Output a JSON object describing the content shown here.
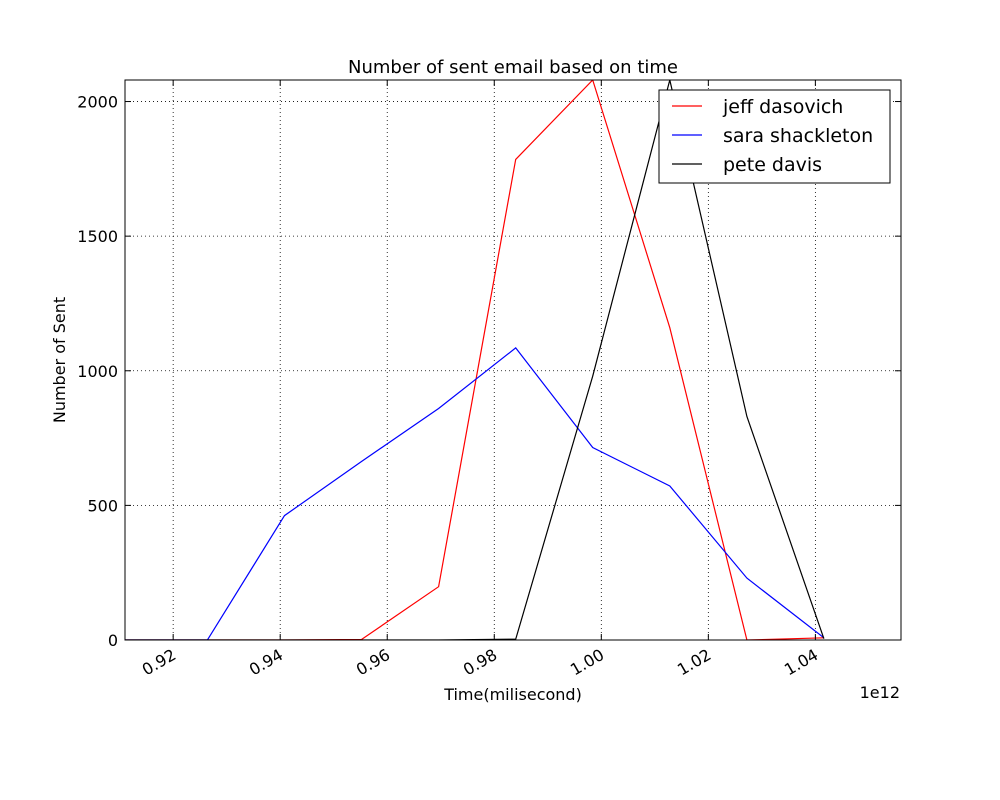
{
  "chart_data": {
    "type": "line",
    "title": "Number of sent email based on time",
    "xlabel": "Time(milisecond)",
    "ylabel": "Number of Sent",
    "x_offset_label": "1e12",
    "xlim": [
      0.911,
      1.056
    ],
    "ylim": [
      0,
      2080
    ],
    "xticks": [
      0.92,
      0.94,
      0.96,
      0.98,
      1.0,
      1.02,
      1.04
    ],
    "xtick_labels": [
      "0.92",
      "0.94",
      "0.96",
      "0.98",
      "1.00",
      "1.02",
      "1.04"
    ],
    "yticks": [
      0,
      500,
      1000,
      1500,
      2000
    ],
    "ytick_labels": [
      "0",
      "500",
      "1000",
      "1500",
      "2000"
    ],
    "grid": true,
    "legend_position": "top-right",
    "series": [
      {
        "name": "jeff dasovich",
        "color": "#ff0000",
        "x": [
          0.911,
          0.9264,
          0.9408,
          0.9552,
          0.9696,
          0.984,
          0.9984,
          1.0128,
          1.0272,
          1.0416
        ],
        "y": [
          0,
          0,
          0,
          2,
          198,
          1785,
          2080,
          1160,
          0,
          8
        ]
      },
      {
        "name": "sara shackleton",
        "color": "#0000ff",
        "x": [
          0.911,
          0.9264,
          0.9408,
          0.9552,
          0.9696,
          0.984,
          0.9984,
          1.0128,
          1.0272,
          1.0416
        ],
        "y": [
          0,
          0,
          462,
          663,
          860,
          1085,
          715,
          572,
          230,
          8
        ]
      },
      {
        "name": "pete davis",
        "color": "#000000",
        "x": [
          0.911,
          0.9264,
          0.9408,
          0.9552,
          0.9696,
          0.984,
          0.9984,
          1.0128,
          1.0272,
          1.0416
        ],
        "y": [
          0,
          0,
          0,
          0,
          0,
          3,
          980,
          2080,
          830,
          5
        ]
      }
    ]
  }
}
